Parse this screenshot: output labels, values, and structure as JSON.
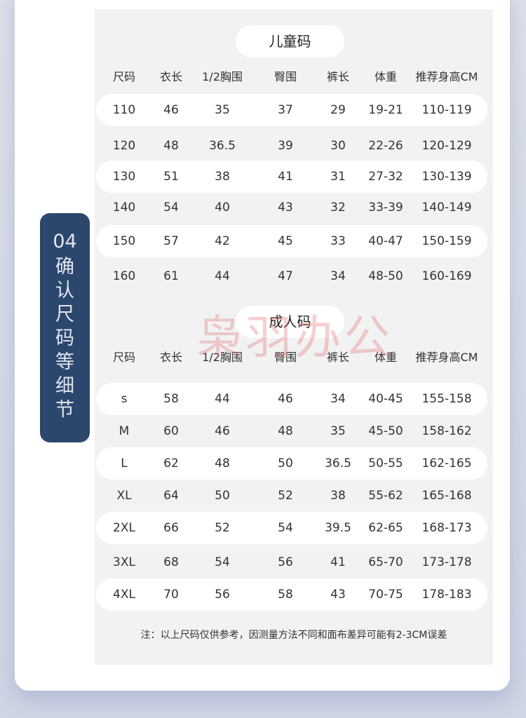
{
  "section_tab": {
    "number": "04",
    "title": "确认尺码等细节"
  },
  "headers": [
    "尺码",
    "衣长",
    "1/2胸围",
    "臀围",
    "裤长",
    "体重",
    "推荐身高CM"
  ],
  "kids": {
    "title": "儿童码",
    "rows": [
      [
        "110",
        "46",
        "35",
        "37",
        "29",
        "19-21",
        "110-119"
      ],
      [
        "120",
        "48",
        "36.5",
        "39",
        "30",
        "22-26",
        "120-129"
      ],
      [
        "130",
        "51",
        "38",
        "41",
        "31",
        "27-32",
        "130-139"
      ],
      [
        "140",
        "54",
        "40",
        "43",
        "32",
        "33-39",
        "140-149"
      ],
      [
        "150",
        "57",
        "42",
        "45",
        "33",
        "40-47",
        "150-159"
      ],
      [
        "160",
        "61",
        "44",
        "47",
        "34",
        "48-50",
        "160-169"
      ]
    ]
  },
  "adults": {
    "title": "成人码",
    "rows": [
      [
        "s",
        "58",
        "44",
        "46",
        "34",
        "40-45",
        "155-158"
      ],
      [
        "M",
        "60",
        "46",
        "48",
        "35",
        "45-50",
        "158-162"
      ],
      [
        "L",
        "62",
        "48",
        "50",
        "36.5",
        "50-55",
        "162-165"
      ],
      [
        "XL",
        "64",
        "50",
        "52",
        "38",
        "55-62",
        "165-168"
      ],
      [
        "2XL",
        "66",
        "52",
        "54",
        "39.5",
        "62-65",
        "168-173"
      ],
      [
        "3XL",
        "68",
        "54",
        "56",
        "41",
        "65-70",
        "173-178"
      ],
      [
        "4XL",
        "70",
        "56",
        "58",
        "43",
        "70-75",
        "178-183"
      ]
    ]
  },
  "note": "注：以上尺码仅供参考，因测量方法不同和面布差异可能有2-3CM误差",
  "watermark": "枭羽办公",
  "colors": {
    "tab": "#2c476e",
    "panel": "#f2f2f2"
  }
}
